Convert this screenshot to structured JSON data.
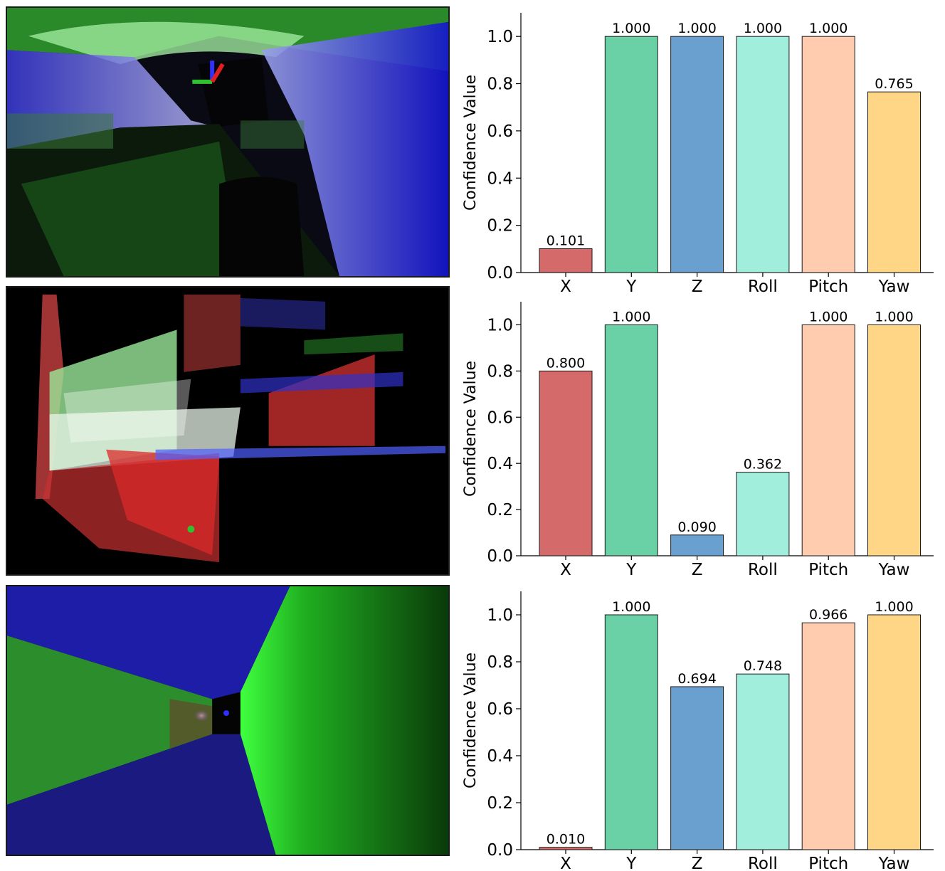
{
  "colors": {
    "X": "#d46a6a",
    "Y": "#6ad0a6",
    "Z": "#6aa0d0",
    "Roll": "#a2eedc",
    "Pitch": "#ffccb0",
    "Yaw": "#ffd685"
  },
  "images": [
    {
      "name": "mine-tunnel-point-cloud",
      "description_icon": "point-cloud-image"
    },
    {
      "name": "building-point-cloud",
      "description_icon": "point-cloud-image"
    },
    {
      "name": "corridor-point-cloud",
      "description_icon": "point-cloud-image"
    }
  ],
  "chart_data": [
    {
      "type": "bar",
      "categories": [
        "X",
        "Y",
        "Z",
        "Roll",
        "Pitch",
        "Yaw"
      ],
      "values": [
        0.101,
        1.0,
        1.0,
        1.0,
        1.0,
        0.765
      ],
      "value_labels": [
        "0.101",
        "1.000",
        "1.000",
        "1.000",
        "1.000",
        "0.765"
      ],
      "ylabel": "Confidence Value",
      "ylim": [
        0,
        1.1
      ],
      "yticks": [
        "0.0",
        "0.2",
        "0.4",
        "0.6",
        "0.8",
        "1.0"
      ]
    },
    {
      "type": "bar",
      "categories": [
        "X",
        "Y",
        "Z",
        "Roll",
        "Pitch",
        "Yaw"
      ],
      "values": [
        0.8,
        1.0,
        0.09,
        0.362,
        1.0,
        1.0
      ],
      "value_labels": [
        "0.800",
        "1.000",
        "0.090",
        "0.362",
        "1.000",
        "1.000"
      ],
      "ylabel": "Confidence Value",
      "ylim": [
        0,
        1.1
      ],
      "yticks": [
        "0.0",
        "0.2",
        "0.4",
        "0.6",
        "0.8",
        "1.0"
      ]
    },
    {
      "type": "bar",
      "categories": [
        "X",
        "Y",
        "Z",
        "Roll",
        "Pitch",
        "Yaw"
      ],
      "values": [
        0.01,
        1.0,
        0.694,
        0.748,
        0.966,
        1.0
      ],
      "value_labels": [
        "0.010",
        "1.000",
        "0.694",
        "0.748",
        "0.966",
        "1.000"
      ],
      "ylabel": "Confidence Value",
      "ylim": [
        0,
        1.1
      ],
      "yticks": [
        "0.0",
        "0.2",
        "0.4",
        "0.6",
        "0.8",
        "1.0"
      ]
    }
  ]
}
